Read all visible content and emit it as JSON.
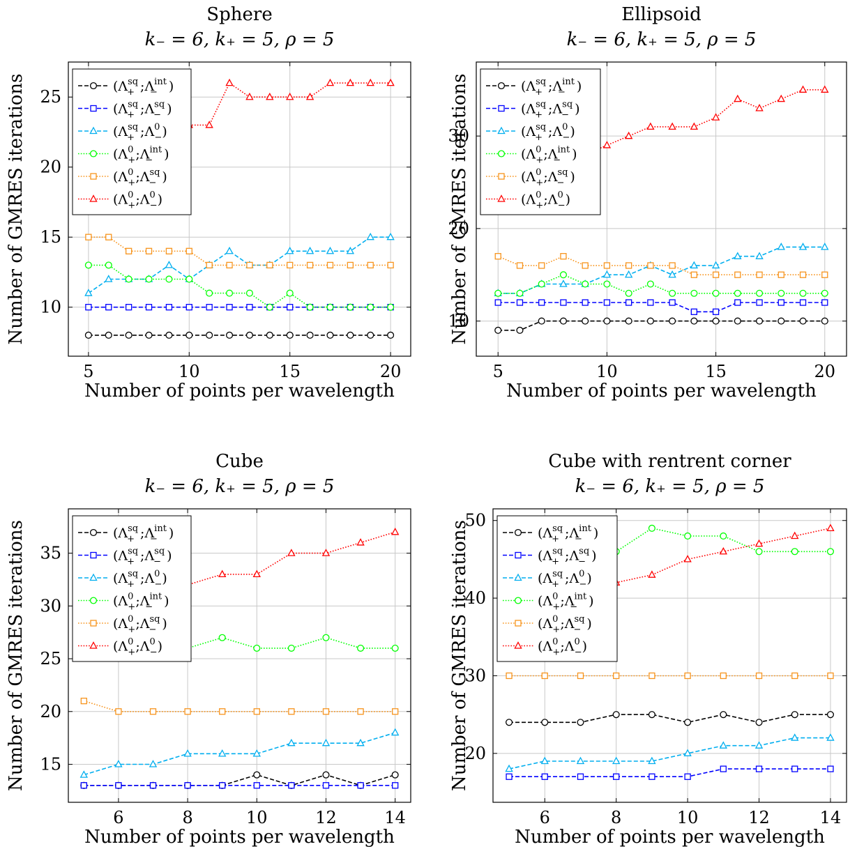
{
  "chart_data": [
    {
      "type": "line",
      "title": "Sphere",
      "subtitle": "k₋ = 6, k₊ = 5, ρ = 5",
      "xlabel": "Number of points per wavelength",
      "ylabel": "Number of GMRES iterations",
      "xlim": [
        4,
        21
      ],
      "ylim": [
        6.5,
        27.5
      ],
      "xticks": [
        5,
        10,
        15,
        20
      ],
      "yticks": [
        10,
        15,
        20,
        25
      ],
      "grid": true,
      "legend_position": "top-left",
      "x": [
        5,
        6,
        7,
        8,
        9,
        10,
        11,
        12,
        13,
        14,
        15,
        16,
        17,
        18,
        19,
        20
      ],
      "series": [
        {
          "name": "(Λ₊sq;Λ₋int)",
          "values": [
            8,
            8,
            8,
            8,
            8,
            8,
            8,
            8,
            8,
            8,
            8,
            8,
            8,
            8,
            8,
            8
          ]
        },
        {
          "name": "(Λ₊sq;Λ₋sq)",
          "values": [
            10,
            10,
            10,
            10,
            10,
            10,
            10,
            10,
            10,
            10,
            10,
            10,
            10,
            10,
            10,
            10
          ]
        },
        {
          "name": "(Λ₊sq;Λ₋0)",
          "values": [
            11,
            12,
            12,
            12,
            13,
            12,
            13,
            14,
            13,
            13,
            14,
            14,
            14,
            14,
            15,
            15
          ]
        },
        {
          "name": "(Λ₊0;Λ₋int)",
          "values": [
            13,
            13,
            12,
            12,
            12,
            12,
            11,
            11,
            11,
            10,
            11,
            10,
            10,
            10,
            10,
            10
          ]
        },
        {
          "name": "(Λ₊0;Λ₋sq)",
          "values": [
            15,
            15,
            14,
            14,
            14,
            14,
            13,
            13,
            13,
            13,
            13,
            13,
            13,
            13,
            13,
            13
          ]
        },
        {
          "name": "(Λ₊0;Λ₋0)",
          "values": [
            20,
            21,
            21,
            22,
            22,
            23,
            23,
            26,
            25,
            25,
            25,
            25,
            26,
            26,
            26,
            26
          ]
        }
      ]
    },
    {
      "type": "line",
      "title": "Ellipsoid",
      "subtitle": "k₋ = 6, k₊ = 5, ρ = 5",
      "xlabel": "Number of points per wavelength",
      "ylabel": "Number of GMRES iterations",
      "xlim": [
        4,
        21
      ],
      "ylim": [
        6.2,
        38
      ],
      "xticks": [
        5,
        10,
        15,
        20
      ],
      "yticks": [
        10,
        20,
        30
      ],
      "grid": true,
      "legend_position": "top-left",
      "x": [
        5,
        6,
        7,
        8,
        9,
        10,
        11,
        12,
        13,
        14,
        15,
        16,
        17,
        18,
        19,
        20
      ],
      "series": [
        {
          "name": "(Λ₊sq;Λ₋int)",
          "values": [
            9,
            9,
            10,
            10,
            10,
            10,
            10,
            10,
            10,
            10,
            10,
            10,
            10,
            10,
            10,
            10
          ]
        },
        {
          "name": "(Λ₊sq;Λ₋sq)",
          "values": [
            12,
            12,
            12,
            12,
            12,
            12,
            12,
            12,
            12,
            11,
            11,
            12,
            12,
            12,
            12,
            12
          ]
        },
        {
          "name": "(Λ₊sq;Λ₋0)",
          "values": [
            13,
            13,
            14,
            14,
            14,
            15,
            15,
            16,
            15,
            16,
            16,
            17,
            17,
            18,
            18,
            18
          ]
        },
        {
          "name": "(Λ₊0;Λ₋int)",
          "values": [
            13,
            13,
            14,
            15,
            14,
            14,
            13,
            14,
            13,
            13,
            13,
            13,
            13,
            13,
            13,
            13
          ]
        },
        {
          "name": "(Λ₊0;Λ₋sq)",
          "values": [
            17,
            16,
            16,
            17,
            16,
            16,
            16,
            16,
            16,
            15,
            15,
            15,
            15,
            15,
            15,
            15
          ]
        },
        {
          "name": "(Λ₊0;Λ₋0)",
          "values": [
            24,
            25,
            26,
            27,
            28,
            29,
            30,
            31,
            31,
            31,
            32,
            34,
            33,
            34,
            35,
            35
          ]
        }
      ]
    },
    {
      "type": "line",
      "title": "Cube",
      "subtitle": "k₋ = 6, k₊ = 5, ρ = 5",
      "xlabel": "Number of points per wavelength",
      "ylabel": "Number of GMRES iterations",
      "xlim": [
        4.55,
        14.45
      ],
      "ylim": [
        11.4,
        39.2
      ],
      "xticks": [
        6,
        8,
        10,
        12,
        14
      ],
      "yticks": [
        15,
        20,
        25,
        30,
        35
      ],
      "grid": true,
      "legend_position": "top-left",
      "x": [
        5,
        6,
        7,
        8,
        9,
        10,
        11,
        12,
        13,
        14
      ],
      "series": [
        {
          "name": "(Λ₊sq;Λ₋int)",
          "values": [
            13,
            13,
            13,
            13,
            13,
            14,
            13,
            14,
            13,
            14
          ]
        },
        {
          "name": "(Λ₊sq;Λ₋sq)",
          "values": [
            13,
            13,
            13,
            13,
            13,
            13,
            13,
            13,
            13,
            13
          ]
        },
        {
          "name": "(Λ₊sq;Λ₋0)",
          "values": [
            14,
            15,
            15,
            16,
            16,
            16,
            17,
            17,
            17,
            18
          ]
        },
        {
          "name": "(Λ₊0;Λ₋int)",
          "values": [
            26,
            26,
            26,
            26,
            27,
            26,
            26,
            27,
            26,
            26
          ]
        },
        {
          "name": "(Λ₊0;Λ₋sq)",
          "values": [
            21,
            20,
            20,
            20,
            20,
            20,
            20,
            20,
            20,
            20
          ]
        },
        {
          "name": "(Λ₊0;Λ₋0)",
          "values": [
            30,
            31,
            31,
            32,
            33,
            33,
            35,
            35,
            36,
            37
          ]
        }
      ]
    },
    {
      "type": "line",
      "title": "Cube with rentrent corner",
      "subtitle": "k₋ = 6, k₊ = 5, ρ = 5",
      "xlabel": "Number of points per wavelength",
      "ylabel": "Number of GMRES iterations",
      "xlim": [
        4.55,
        14.45
      ],
      "ylim": [
        13.7,
        51.5
      ],
      "xticks": [
        6,
        8,
        10,
        12,
        14
      ],
      "yticks": [
        20,
        30,
        40,
        50
      ],
      "grid": true,
      "legend_position": "top-left",
      "x": [
        5,
        6,
        7,
        8,
        9,
        10,
        11,
        12,
        13,
        14
      ],
      "series": [
        {
          "name": "(Λ₊sq;Λ₋int)",
          "values": [
            24,
            24,
            24,
            25,
            25,
            24,
            25,
            24,
            25,
            25
          ]
        },
        {
          "name": "(Λ₊sq;Λ₋sq)",
          "values": [
            17,
            17,
            17,
            17,
            17,
            17,
            18,
            18,
            18,
            18
          ]
        },
        {
          "name": "(Λ₊sq;Λ₋0)",
          "values": [
            18,
            19,
            19,
            19,
            19,
            20,
            21,
            21,
            22,
            22
          ]
        },
        {
          "name": "(Λ₊0;Λ₋int)",
          "values": [
            44,
            45,
            45,
            46,
            49,
            48,
            48,
            46,
            46,
            46
          ]
        },
        {
          "name": "(Λ₊0;Λ₋sq)",
          "values": [
            30,
            30,
            30,
            30,
            30,
            30,
            30,
            30,
            30,
            30
          ]
        },
        {
          "name": "(Λ₊0;Λ₋0)",
          "values": [
            40,
            41,
            41,
            42,
            43,
            45,
            46,
            47,
            48,
            49
          ]
        }
      ]
    }
  ],
  "series_styles": [
    {
      "color": "#000000",
      "marker": "circle",
      "dash": "dashed"
    },
    {
      "color": "#0000ff",
      "marker": "square",
      "dash": "dashed"
    },
    {
      "color": "#00aeef",
      "marker": "triangle",
      "dash": "dashed"
    },
    {
      "color": "#00ff00",
      "marker": "circle",
      "dash": "dotted"
    },
    {
      "color": "#f7941d",
      "marker": "square",
      "dash": "dotted"
    },
    {
      "color": "#ff0000",
      "marker": "triangle",
      "dash": "dotted"
    }
  ],
  "legend_labels": [
    {
      "base": "(Λ",
      "s1sup": "sq",
      "s1sub": "+",
      "mid": ";Λ",
      "s2sup": "int",
      "s2sub": "−",
      "end": ")"
    },
    {
      "base": "(Λ",
      "s1sup": "sq",
      "s1sub": "+",
      "mid": ";Λ",
      "s2sup": "sq",
      "s2sub": "−",
      "end": ")"
    },
    {
      "base": "(Λ",
      "s1sup": "sq",
      "s1sub": "+",
      "mid": ";Λ",
      "s2sup": "0",
      "s2sub": "−",
      "end": ")"
    },
    {
      "base": "(Λ",
      "s1sup": "0",
      "s1sub": "+",
      "mid": ";Λ",
      "s2sup": "int",
      "s2sub": "−",
      "end": ")"
    },
    {
      "base": "(Λ",
      "s1sup": "0",
      "s1sub": "+",
      "mid": ";Λ",
      "s2sup": "sq",
      "s2sub": "−",
      "end": ")"
    },
    {
      "base": "(Λ",
      "s1sup": "0",
      "s1sub": "+",
      "mid": ";Λ",
      "s2sup": "0",
      "s2sub": "−",
      "end": ")"
    }
  ]
}
